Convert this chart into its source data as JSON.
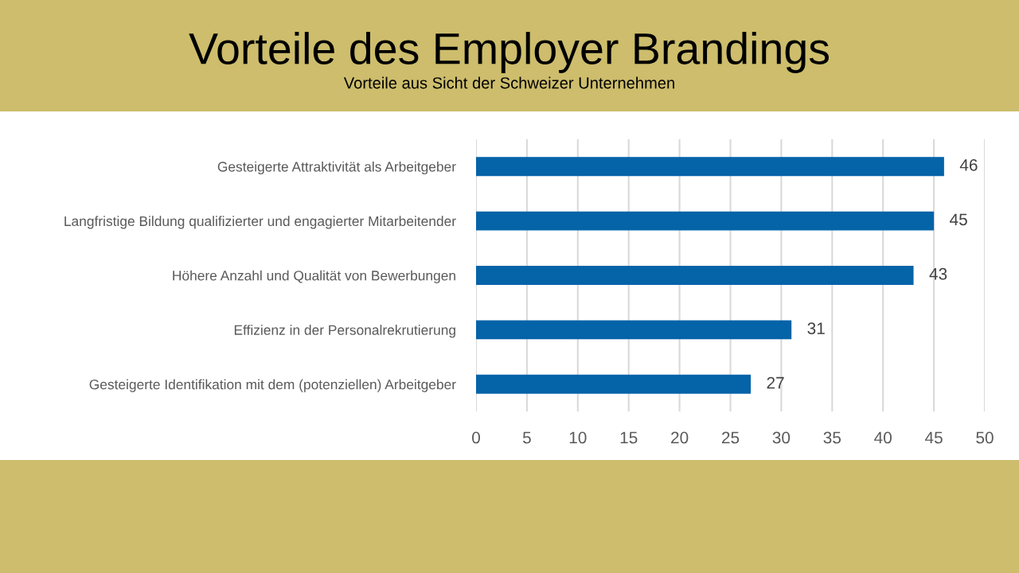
{
  "chart_data": {
    "type": "bar",
    "orientation": "horizontal",
    "title": "Vorteile des Employer Brandings",
    "subtitle": "Vorteile aus Sicht der Schweizer Unternehmen",
    "categories": [
      "Gesteigerte Attraktivität als Arbeitgeber",
      "Langfristige Bildung qualifizierter und engagierter Mitarbeitender",
      "Höhere Anzahl und Qualität von Bewerbungen",
      "Effizienz in der Personalrekrutierung",
      "Gesteigerte Identifikation mit dem (potenziellen) Arbeitgeber"
    ],
    "values": [
      46,
      45,
      43,
      31,
      27
    ],
    "color": "#0563a8",
    "xlim": [
      0,
      50
    ],
    "xticks": [
      0,
      5,
      10,
      15,
      20,
      25,
      30,
      35,
      40,
      45,
      50
    ],
    "grid": "x",
    "data_labels": true
  }
}
